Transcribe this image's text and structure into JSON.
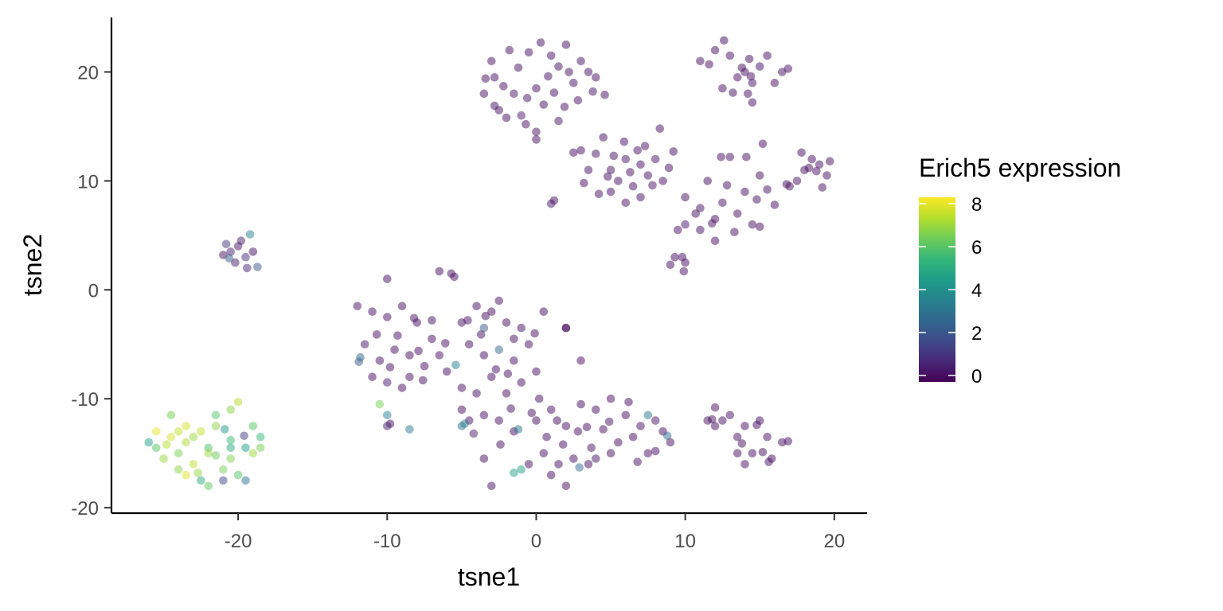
{
  "chart_data": {
    "type": "scatter",
    "xlabel": "tsne1",
    "ylabel": "tsne2",
    "xlim": [
      -28.5,
      22.2
    ],
    "ylim": [
      -20.5,
      25.0
    ],
    "x_ticks": [
      -20,
      -10,
      0,
      10,
      20
    ],
    "x_tick_labels": [
      "-20",
      "-10",
      "0",
      "10",
      "20"
    ],
    "y_ticks": [
      -20,
      -10,
      0,
      10,
      20
    ],
    "y_tick_labels": [
      "-20",
      "-10",
      "0",
      "10",
      "20"
    ],
    "grid": false,
    "point_alpha": 0.5,
    "legend": {
      "title": "Erich5 expression",
      "placement": "right",
      "colormap": "viridis",
      "range": [
        -0.3,
        8.3
      ],
      "ticks": [
        0,
        2,
        4,
        6,
        8
      ],
      "tick_labels": [
        "0",
        "2",
        "4",
        "6",
        "8"
      ]
    },
    "colors": {
      "viridis": [
        "#440154",
        "#482878",
        "#3E4A89",
        "#31688E",
        "#26828E",
        "#1F9E89",
        "#35B779",
        "#6DCD59",
        "#B4DE2C",
        "#FDE725"
      ]
    },
    "points": [
      [
        -22.5,
        -13.0,
        7.5
      ],
      [
        -23.5,
        -14.0,
        7.2
      ],
      [
        -24.0,
        -15.0,
        6.5
      ],
      [
        -25.5,
        -14.5,
        6.0
      ],
      [
        -24.5,
        -13.5,
        7.8
      ],
      [
        -21.5,
        -12.5,
        6.8
      ],
      [
        -20.5,
        -13.8,
        5.5
      ],
      [
        -19.5,
        -14.5,
        4.5
      ],
      [
        -18.5,
        -13.5,
        5.5
      ],
      [
        -19.0,
        -12.5,
        6.0
      ],
      [
        -22.0,
        -15.0,
        7.0
      ],
      [
        -23.0,
        -16.0,
        7.5
      ],
      [
        -21.0,
        -16.5,
        6.5
      ],
      [
        -20.0,
        -17.0,
        6.0
      ],
      [
        -22.5,
        -17.5,
        5.0
      ],
      [
        -24.0,
        -16.5,
        6.8
      ],
      [
        -25.0,
        -15.5,
        7.0
      ],
      [
        -26.0,
        -14.0,
        4.5
      ],
      [
        -25.5,
        -13.0,
        8.0
      ],
      [
        -23.5,
        -12.5,
        7.8
      ],
      [
        -21.5,
        -11.5,
        6.0
      ],
      [
        -20.5,
        -11.0,
        6.8
      ],
      [
        -20.0,
        -10.3,
        7.3
      ],
      [
        -24.5,
        -11.5,
        6.5
      ],
      [
        -22.0,
        -18.0,
        6.2
      ],
      [
        -21.0,
        -17.5,
        1.5
      ],
      [
        -19.5,
        -17.5,
        3.0
      ],
      [
        -20.5,
        -15.5,
        6.6
      ],
      [
        -19.0,
        -15.0,
        7.0
      ],
      [
        -18.5,
        -14.5,
        6.5
      ],
      [
        -22.0,
        -14.5,
        5.8
      ],
      [
        -23.0,
        -13.5,
        7.0
      ],
      [
        -24.0,
        -13.0,
        7.5
      ],
      [
        -20.5,
        -14.5,
        5.0
      ],
      [
        -21.5,
        -15.2,
        6.3
      ],
      [
        -23.5,
        -17.0,
        7.9
      ],
      [
        -22.7,
        -16.8,
        6.9
      ],
      [
        -24.8,
        -14.2,
        7.4
      ],
      [
        -19.6,
        -13.4,
        1.2
      ],
      [
        -20.9,
        -12.8,
        4.2
      ],
      [
        -20.0,
        4.0,
        0.2
      ],
      [
        -20.5,
        3.5,
        0.5
      ],
      [
        -21.0,
        3.2,
        0.0
      ],
      [
        -19.5,
        3.0,
        0.8
      ],
      [
        -20.2,
        2.5,
        0.3
      ],
      [
        -19.0,
        3.5,
        0.0
      ],
      [
        -20.8,
        4.2,
        1.0
      ],
      [
        -19.2,
        5.1,
        3.5
      ],
      [
        -18.7,
        2.1,
        2.0
      ],
      [
        -19.8,
        4.5,
        0.4
      ],
      [
        -20.6,
        2.9,
        2.2
      ],
      [
        -19.4,
        2.0,
        0.6
      ],
      [
        -2.8,
        19.5,
        0.0
      ],
      [
        -1.5,
        18.0,
        0.2
      ],
      [
        0.0,
        18.5,
        0.0
      ],
      [
        1.5,
        20.5,
        0.1
      ],
      [
        2.5,
        19.0,
        0.0
      ],
      [
        -3.5,
        18.0,
        0.0
      ],
      [
        -2.5,
        16.5,
        0.0
      ],
      [
        -1.0,
        16.0,
        0.3
      ],
      [
        0.5,
        17.0,
        0.0
      ],
      [
        1.0,
        21.5,
        0.0
      ],
      [
        2.0,
        22.5,
        0.0
      ],
      [
        3.0,
        21.0,
        0.1
      ],
      [
        -0.5,
        21.8,
        0.0
      ],
      [
        0.0,
        14.5,
        0.0
      ],
      [
        1.5,
        15.5,
        0.2
      ],
      [
        -2.0,
        15.8,
        0.0
      ],
      [
        3.5,
        20.0,
        0.0
      ],
      [
        -3.0,
        21.0,
        0.0
      ],
      [
        0.8,
        19.6,
        0.0
      ],
      [
        -1.2,
        20.4,
        0.1
      ],
      [
        2.8,
        17.4,
        0.0
      ],
      [
        -0.6,
        17.6,
        0.2
      ],
      [
        1.9,
        16.8,
        0.0
      ],
      [
        -2.2,
        18.7,
        0.0
      ],
      [
        0.3,
        22.7,
        0.0
      ],
      [
        3.8,
        18.2,
        0.1
      ],
      [
        -3.4,
        19.4,
        0.0
      ],
      [
        1.2,
        18.1,
        0.0
      ],
      [
        2.2,
        20.0,
        0.0
      ],
      [
        -1.8,
        22.0,
        0.0
      ],
      [
        4.0,
        19.5,
        0.0
      ],
      [
        -2.8,
        16.9,
        0.1
      ],
      [
        0.0,
        13.8,
        0.0
      ],
      [
        -0.7,
        15.2,
        0.0
      ],
      [
        4.6,
        17.9,
        0.0
      ],
      [
        5.0,
        11.0,
        0.0
      ],
      [
        6.0,
        12.0,
        0.2
      ],
      [
        7.0,
        11.5,
        0.0
      ],
      [
        5.5,
        10.0,
        0.0
      ],
      [
        4.0,
        12.5,
        0.1
      ],
      [
        6.5,
        9.5,
        0.0
      ],
      [
        7.5,
        10.5,
        0.0
      ],
      [
        4.5,
        14.0,
        0.0
      ],
      [
        3.0,
        12.8,
        0.0
      ],
      [
        8.0,
        12.0,
        0.2
      ],
      [
        5.0,
        9.0,
        0.0
      ],
      [
        6.0,
        8.0,
        0.0
      ],
      [
        7.0,
        8.5,
        0.0
      ],
      [
        3.5,
        11.0,
        0.1
      ],
      [
        8.5,
        10.0,
        0.0
      ],
      [
        4.8,
        10.4,
        0.0
      ],
      [
        5.9,
        13.6,
        0.0
      ],
      [
        6.8,
        12.8,
        0.0
      ],
      [
        7.8,
        9.6,
        0.1
      ],
      [
        5.2,
        12.3,
        0.0
      ],
      [
        3.2,
        9.8,
        0.0
      ],
      [
        4.2,
        8.8,
        0.0
      ],
      [
        6.3,
        10.8,
        0.0
      ],
      [
        8.9,
        11.2,
        0.0
      ],
      [
        7.3,
        13.2,
        0.0
      ],
      [
        1.2,
        8.2,
        0.0
      ],
      [
        1.0,
        7.9,
        0.2
      ],
      [
        2.5,
        12.6,
        0.0
      ],
      [
        9.2,
        12.7,
        0.0
      ],
      [
        8.3,
        14.8,
        0.0
      ],
      [
        10.0,
        8.5,
        0.0
      ],
      [
        11.0,
        7.5,
        0.0
      ],
      [
        12.0,
        6.5,
        0.0
      ],
      [
        13.5,
        7.0,
        0.0
      ],
      [
        11.5,
        10.0,
        0.0
      ],
      [
        12.5,
        8.0,
        0.1
      ],
      [
        14.0,
        9.0,
        0.0
      ],
      [
        15.0,
        10.5,
        0.0
      ],
      [
        13.0,
        12.2,
        0.0
      ],
      [
        11.0,
        5.5,
        0.0
      ],
      [
        12.0,
        4.5,
        0.0
      ],
      [
        14.5,
        6.0,
        0.0
      ],
      [
        15.0,
        5.8,
        0.0
      ],
      [
        16.0,
        7.8,
        0.0
      ],
      [
        10.0,
        6.0,
        0.2
      ],
      [
        9.5,
        5.5,
        0.0
      ],
      [
        9.8,
        3.0,
        0.0
      ],
      [
        10.0,
        2.5,
        0.0
      ],
      [
        9.0,
        2.3,
        0.0
      ],
      [
        9.9,
        1.7,
        0.0
      ],
      [
        9.3,
        3.0,
        0.0
      ],
      [
        12.8,
        9.6,
        0.0
      ],
      [
        11.8,
        6.1,
        0.0
      ],
      [
        13.3,
        5.3,
        0.0
      ],
      [
        14.8,
        8.3,
        0.1
      ],
      [
        15.5,
        9.2,
        0.0
      ],
      [
        12.4,
        12.2,
        0.0
      ],
      [
        14.1,
        12.2,
        0.0
      ],
      [
        15.2,
        13.4,
        0.0
      ],
      [
        10.7,
        7.0,
        0.0
      ],
      [
        11.0,
        21.0,
        0.0
      ],
      [
        12.0,
        22.0,
        0.0
      ],
      [
        13.0,
        21.5,
        0.0
      ],
      [
        14.0,
        20.0,
        0.0
      ],
      [
        14.5,
        19.0,
        0.1
      ],
      [
        15.0,
        20.5,
        0.0
      ],
      [
        13.5,
        19.5,
        0.0
      ],
      [
        14.2,
        18.0,
        0.0
      ],
      [
        12.5,
        18.5,
        0.0
      ],
      [
        16.0,
        19.0,
        0.0
      ],
      [
        16.5,
        20.0,
        0.0
      ],
      [
        15.5,
        21.5,
        0.0
      ],
      [
        12.6,
        22.9,
        0.0
      ],
      [
        14.3,
        21.2,
        0.0
      ],
      [
        11.6,
        20.7,
        0.0
      ],
      [
        14.5,
        17.2,
        0.0
      ],
      [
        16.9,
        20.3,
        0.1
      ],
      [
        13.8,
        20.4,
        0.0
      ],
      [
        14.4,
        19.6,
        0.0
      ],
      [
        13.2,
        18.1,
        0.0
      ],
      [
        18.0,
        11.0,
        0.0
      ],
      [
        19.0,
        11.5,
        0.0
      ],
      [
        18.5,
        12.0,
        0.0
      ],
      [
        17.5,
        10.0,
        0.0
      ],
      [
        19.5,
        10.5,
        0.0
      ],
      [
        18.3,
        11.2,
        0.0
      ],
      [
        17.0,
        9.5,
        0.0
      ],
      [
        19.2,
        9.4,
        0.0
      ],
      [
        18.8,
        10.9,
        0.0
      ],
      [
        17.8,
        12.6,
        0.0
      ],
      [
        16.8,
        9.7,
        0.0
      ],
      [
        19.7,
        11.8,
        0.0
      ],
      [
        -12.0,
        -1.5,
        0.0
      ],
      [
        -11.0,
        -2.0,
        0.0
      ],
      [
        -10.0,
        -2.5,
        0.0
      ],
      [
        -9.0,
        -1.5,
        0.0
      ],
      [
        -8.0,
        -3.0,
        0.0
      ],
      [
        -7.0,
        -2.8,
        0.0
      ],
      [
        -11.5,
        -5.0,
        0.2
      ],
      [
        -10.5,
        -6.5,
        0.0
      ],
      [
        -9.5,
        -5.5,
        0.0
      ],
      [
        -8.5,
        -6.0,
        0.0
      ],
      [
        -11.8,
        -6.2,
        2.5
      ],
      [
        -11.9,
        -6.6,
        2.0
      ],
      [
        -10.0,
        1.0,
        0.0
      ],
      [
        -11.0,
        -8.0,
        0.0
      ],
      [
        -10.0,
        -8.5,
        0.3
      ],
      [
        -9.0,
        -9.0,
        0.0
      ],
      [
        -8.5,
        -8.0,
        0.0
      ],
      [
        -7.5,
        -7.0,
        0.0
      ],
      [
        -6.5,
        -6.0,
        0.0
      ],
      [
        -7.0,
        -4.5,
        0.0
      ],
      [
        -6.5,
        1.7,
        0.0
      ],
      [
        -5.7,
        1.5,
        0.0
      ],
      [
        -5.5,
        1.2,
        0.0
      ],
      [
        -5.0,
        -3.0,
        0.0
      ],
      [
        -4.0,
        -1.5,
        0.0
      ],
      [
        -3.0,
        -2.0,
        0.0
      ],
      [
        -2.5,
        -1.0,
        0.0
      ],
      [
        -3.5,
        -3.5,
        2.2
      ],
      [
        -2.0,
        -3.0,
        0.0
      ],
      [
        -1.5,
        -4.5,
        0.0
      ],
      [
        -4.5,
        -5.0,
        0.0
      ],
      [
        -3.5,
        -6.0,
        0.0
      ],
      [
        -2.5,
        -5.5,
        2.5
      ],
      [
        -1.5,
        -6.5,
        0.0
      ],
      [
        -0.5,
        -5.0,
        0.0
      ],
      [
        -3.0,
        -8.0,
        0.0
      ],
      [
        -2.0,
        -9.5,
        0.0
      ],
      [
        -1.0,
        -8.5,
        0.0
      ],
      [
        0.0,
        -7.5,
        0.0
      ],
      [
        -4.0,
        -9.5,
        0.0
      ],
      [
        -5.0,
        -9.0,
        0.0
      ],
      [
        -6.0,
        -7.5,
        0.0
      ],
      [
        -1.0,
        -3.5,
        0.0
      ],
      [
        0.5,
        -2.0,
        0.0
      ],
      [
        2.0,
        -3.5,
        0.0
      ],
      [
        3.0,
        -6.5,
        0.0
      ],
      [
        -7.9,
        -5.6,
        0.0
      ],
      [
        -9.3,
        -4.2,
        0.0
      ],
      [
        -5.4,
        -6.9,
        3.5
      ],
      [
        -6.1,
        -4.9,
        0.0
      ],
      [
        -2.7,
        -7.3,
        0.1
      ],
      [
        -3.7,
        -4.1,
        0.0
      ],
      [
        -1.9,
        -7.7,
        0.0
      ],
      [
        -8.2,
        -2.6,
        0.0
      ],
      [
        -7.6,
        -8.3,
        0.0
      ],
      [
        -10.7,
        -4.1,
        0.0
      ],
      [
        -9.8,
        -7.1,
        0.0
      ],
      [
        -4.6,
        -2.8,
        0.0
      ],
      [
        -0.1,
        -4.0,
        0.0
      ],
      [
        -3.4,
        -2.4,
        0.0
      ],
      [
        -10.5,
        -10.5,
        6.5
      ],
      [
        -10.0,
        -11.5,
        3.5
      ],
      [
        -10.0,
        -12.5,
        0.5
      ],
      [
        -9.8,
        -12.3,
        0.0
      ],
      [
        -8.5,
        -12.8,
        3.2
      ],
      [
        -5.0,
        -11.0,
        0.0
      ],
      [
        -4.5,
        -12.0,
        0.0
      ],
      [
        -3.5,
        -11.5,
        0.0
      ],
      [
        -2.5,
        -12.0,
        0.0
      ],
      [
        -1.5,
        -13.0,
        0.0
      ],
      [
        -5.0,
        -12.5,
        2.8
      ],
      [
        -4.8,
        -12.3,
        3.4
      ],
      [
        -4.2,
        -13.2,
        0.4
      ],
      [
        0.0,
        -12.0,
        0.0
      ],
      [
        1.0,
        -11.0,
        0.0
      ],
      [
        2.0,
        -12.5,
        0.0
      ],
      [
        3.0,
        -10.5,
        0.0
      ],
      [
        4.0,
        -11.0,
        0.0
      ],
      [
        5.0,
        -10.0,
        0.0
      ],
      [
        6.0,
        -11.5,
        0.0
      ],
      [
        0.5,
        -15.0,
        0.0
      ],
      [
        1.5,
        -16.0,
        0.0
      ],
      [
        2.5,
        -15.5,
        0.0
      ],
      [
        3.5,
        -16.0,
        0.0
      ],
      [
        -1.0,
        -16.5,
        4.6
      ],
      [
        -1.5,
        -16.8,
        4.5
      ],
      [
        -0.5,
        -16.0,
        0.0
      ],
      [
        1.0,
        -17.0,
        0.0
      ],
      [
        2.0,
        -18.0,
        0.0
      ],
      [
        -3.0,
        -18.0,
        0.0
      ],
      [
        -3.5,
        -15.5,
        0.0
      ],
      [
        -1.2,
        -12.8,
        3.0
      ],
      [
        0.7,
        -13.5,
        0.0
      ],
      [
        1.8,
        -14.2,
        0.0
      ],
      [
        2.8,
        -13.0,
        0.0
      ],
      [
        4.5,
        -12.8,
        0.0
      ],
      [
        5.5,
        -14.0,
        0.0
      ],
      [
        5.0,
        -15.0,
        0.0
      ],
      [
        4.0,
        -15.5,
        0.2
      ],
      [
        2.9,
        -16.3,
        2.6
      ],
      [
        6.5,
        -13.5,
        0.0
      ],
      [
        7.0,
        -12.5,
        0.0
      ],
      [
        7.5,
        -11.5,
        3.0
      ],
      [
        8.0,
        -12.0,
        0.2
      ],
      [
        8.5,
        -13.0,
        0.0
      ],
      [
        7.5,
        -15.0,
        0.0
      ],
      [
        8.0,
        -14.8,
        0.0
      ],
      [
        9.0,
        -14.0,
        0.0
      ],
      [
        8.8,
        -13.4,
        2.7
      ],
      [
        6.8,
        -15.8,
        0.0
      ],
      [
        6.2,
        -10.3,
        0.0
      ],
      [
        4.9,
        -12.1,
        0.0
      ],
      [
        3.4,
        -12.6,
        0.0
      ],
      [
        -0.3,
        -11.3,
        0.0
      ],
      [
        1.4,
        -12.0,
        0.0
      ],
      [
        2.0,
        -3.5,
        0.0
      ],
      [
        -1.7,
        -10.9,
        0.0
      ],
      [
        0.2,
        -10.0,
        0.0
      ],
      [
        3.7,
        -14.5,
        0.1
      ],
      [
        -2.4,
        -14.2,
        0.0
      ],
      [
        12.0,
        -10.8,
        0.0
      ],
      [
        13.0,
        -11.5,
        0.0
      ],
      [
        14.0,
        -12.5,
        0.0
      ],
      [
        13.5,
        -13.5,
        0.0
      ],
      [
        12.5,
        -12.0,
        0.0
      ],
      [
        15.0,
        -12.0,
        0.0
      ],
      [
        15.5,
        -13.5,
        0.0
      ],
      [
        16.5,
        -14.0,
        0.0
      ],
      [
        15.8,
        -15.5,
        0.0
      ],
      [
        14.5,
        -15.0,
        0.0
      ],
      [
        13.5,
        -15.0,
        0.0
      ],
      [
        14.0,
        -16.0,
        0.0
      ],
      [
        11.5,
        -12.0,
        0.0
      ],
      [
        12.0,
        -12.5,
        0.0
      ],
      [
        13.8,
        -14.1,
        0.0
      ],
      [
        15.2,
        -14.9,
        0.0
      ],
      [
        16.9,
        -13.9,
        0.0
      ],
      [
        14.8,
        -12.4,
        0.0
      ],
      [
        11.8,
        -11.9,
        0.0
      ],
      [
        15.6,
        -15.8,
        0.1
      ]
    ]
  }
}
